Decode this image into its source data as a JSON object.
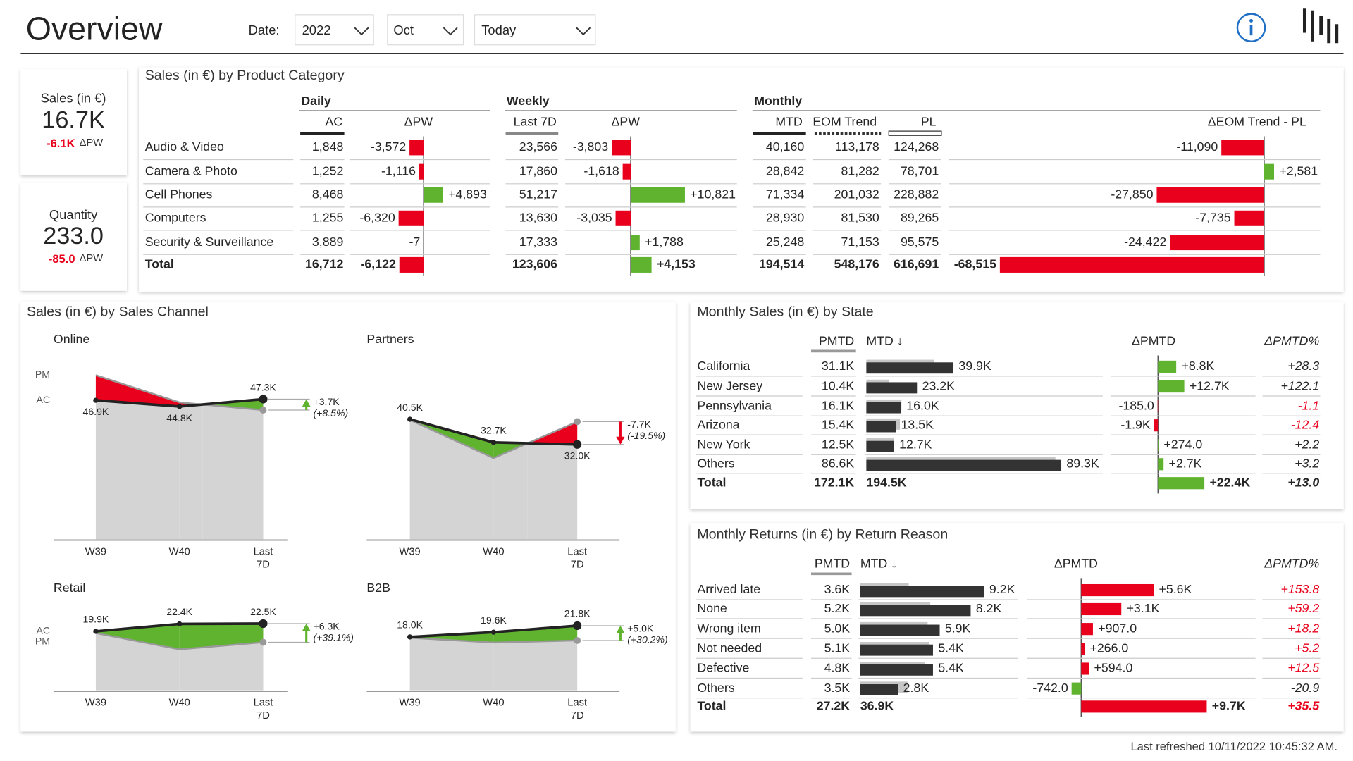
{
  "header": {
    "title": "Overview",
    "date_label": "Date:",
    "filters": [
      "2022",
      "Oct",
      "Today"
    ]
  },
  "palette": {
    "good": "#5fb32e",
    "bad": "#e8001c"
  },
  "kpis": [
    {
      "label": "Sales (in €)",
      "value": "16.7K",
      "delta": "-6.1K",
      "delta_label": "ΔPW"
    },
    {
      "label": "Quantity",
      "value": "233.0",
      "delta": "-85.0",
      "delta_label": "ΔPW"
    }
  ],
  "product_table": {
    "title": "Sales (in €) by Product Category",
    "groups": {
      "daily": "Daily",
      "weekly": "Weekly",
      "monthly": "Monthly"
    },
    "columns": {
      "ac": "AC",
      "ac_dpw": "ΔPW",
      "last7d": "Last 7D",
      "w_dpw": "ΔPW",
      "mtd": "MTD",
      "eom_trend": "EOM Trend",
      "pl": "PL",
      "eom_dpl": "ΔEOM Trend - PL"
    },
    "rows": [
      {
        "name": "Audio & Video",
        "ac": "1,848",
        "ac_dpw": {
          "value": -3572,
          "label": "-3,572"
        },
        "last7d": "23,566",
        "w_dpw": {
          "value": -3803,
          "label": "-3,803"
        },
        "mtd": "40,160",
        "eom_trend": "113,178",
        "pl": "124,268",
        "eom_dpl": {
          "value": -11090,
          "label": "-11,090"
        }
      },
      {
        "name": "Camera & Photo",
        "ac": "1,252",
        "ac_dpw": {
          "value": -1116,
          "label": "-1,116"
        },
        "last7d": "17,860",
        "w_dpw": {
          "value": -1618,
          "label": "-1,618"
        },
        "mtd": "28,842",
        "eom_trend": "81,282",
        "pl": "78,701",
        "eom_dpl": {
          "value": 2581,
          "label": "+2,581"
        }
      },
      {
        "name": "Cell Phones",
        "ac": "8,468",
        "ac_dpw": {
          "value": 4893,
          "label": "+4,893"
        },
        "last7d": "51,217",
        "w_dpw": {
          "value": 10821,
          "label": "+10,821"
        },
        "mtd": "71,334",
        "eom_trend": "201,032",
        "pl": "228,882",
        "eom_dpl": {
          "value": -27850,
          "label": "-27,850"
        }
      },
      {
        "name": "Computers",
        "ac": "1,255",
        "ac_dpw": {
          "value": -6320,
          "label": "-6,320"
        },
        "last7d": "13,630",
        "w_dpw": {
          "value": -3035,
          "label": "-3,035"
        },
        "mtd": "28,930",
        "eom_trend": "81,530",
        "pl": "89,265",
        "eom_dpl": {
          "value": -7735,
          "label": "-7,735"
        }
      },
      {
        "name": "Security & Surveillance",
        "ac": "3,889",
        "ac_dpw": {
          "value": -7,
          "label": "-7"
        },
        "last7d": "17,333",
        "w_dpw": {
          "value": 1788,
          "label": "+1,788"
        },
        "mtd": "25,248",
        "eom_trend": "71,153",
        "pl": "95,575",
        "eom_dpl": {
          "value": -24422,
          "label": "-24,422"
        }
      },
      {
        "name": "Total",
        "ac": "16,712",
        "ac_dpw": {
          "value": -6122,
          "label": "-6,122"
        },
        "last7d": "123,606",
        "w_dpw": {
          "value": 4153,
          "label": "+4,153"
        },
        "mtd": "194,514",
        "eom_trend": "548,176",
        "pl": "616,691",
        "eom_dpl": {
          "value": -68515,
          "label": "-68,515"
        }
      }
    ]
  },
  "sales_channel": {
    "title": "Sales (in €) by Sales Channel",
    "charts": [
      {
        "name": "Online",
        "type": "area",
        "categories": [
          "W39",
          "W40",
          "Last 7D"
        ],
        "ylim": [
          0,
          60
        ],
        "series": [
          {
            "name": "AC",
            "color": "#222222",
            "values": [
              46.9,
              44.8,
              47.3
            ],
            "value_labels": [
              "46.9K",
              "44.8K",
              "47.3K"
            ]
          },
          {
            "name": "PM",
            "color": "#999999",
            "values": [
              55.4,
              46.2,
              43.6
            ]
          }
        ],
        "delta": {
          "value": 3.7,
          "label": "+3.7K"
        },
        "delta_pct": "(+8.5%)"
      },
      {
        "name": "Partners",
        "type": "area",
        "categories": [
          "W39",
          "W40",
          "Last 7D"
        ],
        "ylim": [
          0,
          60
        ],
        "series": [
          {
            "color": "#222222",
            "values": [
              40.5,
              32.7,
              32.0
            ],
            "value_labels": [
              "40.5K",
              "32.7K",
              "32.0K"
            ]
          },
          {
            "color": "#999999",
            "values": [
              40.3,
              27.4,
              39.7
            ]
          }
        ],
        "delta": {
          "value": -7.7,
          "label": "-7.7K"
        },
        "delta_pct": "(-19.5%)"
      },
      {
        "name": "Retail",
        "type": "area",
        "categories": [
          "W39",
          "W40",
          "Last 7D"
        ],
        "ylim": [
          0,
          30
        ],
        "series": [
          {
            "name": "AC",
            "color": "#222222",
            "values": [
              19.9,
              22.4,
              22.5
            ],
            "value_labels": [
              "19.9K",
              "22.4K",
              "22.5K"
            ]
          },
          {
            "name": "PM",
            "color": "#999999",
            "values": [
              19.3,
              13.8,
              16.2
            ]
          }
        ],
        "delta": {
          "value": 6.3,
          "label": "+6.3K"
        },
        "delta_pct": "(+39.1%)"
      },
      {
        "name": "B2B",
        "type": "area",
        "categories": [
          "W39",
          "W40",
          "Last 7D"
        ],
        "ylim": [
          0,
          30
        ],
        "series": [
          {
            "color": "#222222",
            "values": [
              18.0,
              19.6,
              21.8
            ],
            "value_labels": [
              "18.0K",
              "19.6K",
              "21.8K"
            ]
          },
          {
            "color": "#999999",
            "values": [
              17.7,
              16.1,
              16.8
            ]
          }
        ],
        "delta": {
          "value": 5.0,
          "label": "+5.0K"
        },
        "delta_pct": "(+30.2%)"
      }
    ]
  },
  "state_table": {
    "title": "Monthly Sales (in €) by State",
    "increase": "good",
    "columns": {
      "pmtd": "PMTD",
      "mtd": "MTD ↓",
      "delta": "ΔPMTD",
      "pct": "ΔPMTD%"
    },
    "rows": [
      {
        "name": "California",
        "pmtd": {
          "value": 31100,
          "label": "31.1K"
        },
        "mtd": {
          "value": 39900,
          "label": "39.9K"
        },
        "delta": {
          "value": 8800,
          "label": "+8.8K"
        },
        "pct": "+28.3"
      },
      {
        "name": "New Jersey",
        "pmtd": {
          "value": 10400,
          "label": "10.4K"
        },
        "mtd": {
          "value": 23200,
          "label": "23.2K"
        },
        "delta": {
          "value": 12700,
          "label": "+12.7K"
        },
        "pct": "+122.1"
      },
      {
        "name": "Pennsylvania",
        "pmtd": {
          "value": 16100,
          "label": "16.1K"
        },
        "mtd": {
          "value": 16000,
          "label": "16.0K"
        },
        "delta": {
          "value": -185,
          "label": "-185.0"
        },
        "pct": "-1.1"
      },
      {
        "name": "Arizona",
        "pmtd": {
          "value": 15400,
          "label": "15.4K"
        },
        "mtd": {
          "value": 13500,
          "label": "13.5K"
        },
        "delta": {
          "value": -1900,
          "label": "-1.9K"
        },
        "pct": "-12.4"
      },
      {
        "name": "New York",
        "pmtd": {
          "value": 12500,
          "label": "12.5K"
        },
        "mtd": {
          "value": 12700,
          "label": "12.7K"
        },
        "delta": {
          "value": 274,
          "label": "+274.0"
        },
        "pct": "+2.2"
      },
      {
        "name": "Others",
        "pmtd": {
          "value": 86600,
          "label": "86.6K"
        },
        "mtd": {
          "value": 89300,
          "label": "89.3K"
        },
        "delta": {
          "value": 2700,
          "label": "+2.7K"
        },
        "pct": "+3.2"
      },
      {
        "name": "Total",
        "pmtd": "172.1K",
        "mtd": "194.5K",
        "delta": {
          "value": 22400,
          "label": "+22.4K"
        },
        "pct": "+13.0"
      }
    ]
  },
  "returns_table": {
    "title": "Monthly Returns (in €) by Return Reason",
    "increase": "bad",
    "columns": {
      "pmtd": "PMTD",
      "mtd": "MTD ↓",
      "delta": "ΔPMTD",
      "pct": "ΔPMTD%"
    },
    "rows": [
      {
        "name": "Arrived late",
        "pmtd": {
          "value": 3600,
          "label": "3.6K"
        },
        "mtd": {
          "value": 9200,
          "label": "9.2K"
        },
        "delta": {
          "value": 5600,
          "label": "+5.6K"
        },
        "pct": "+153.8"
      },
      {
        "name": "None",
        "pmtd": {
          "value": 5200,
          "label": "5.2K"
        },
        "mtd": {
          "value": 8200,
          "label": "8.2K"
        },
        "delta": {
          "value": 3100,
          "label": "+3.1K"
        },
        "pct": "+59.2"
      },
      {
        "name": "Wrong item",
        "pmtd": {
          "value": 5000,
          "label": "5.0K"
        },
        "mtd": {
          "value": 5900,
          "label": "5.9K"
        },
        "delta": {
          "value": 907,
          "label": "+907.0"
        },
        "pct": "+18.2"
      },
      {
        "name": "Not needed",
        "pmtd": {
          "value": 5100,
          "label": "5.1K"
        },
        "mtd": {
          "value": 5400,
          "label": "5.4K"
        },
        "delta": {
          "value": 266,
          "label": "+266.0"
        },
        "pct": "+5.2"
      },
      {
        "name": "Defective",
        "pmtd": {
          "value": 4800,
          "label": "4.8K"
        },
        "mtd": {
          "value": 5400,
          "label": "5.4K"
        },
        "delta": {
          "value": 594,
          "label": "+594.0"
        },
        "pct": "+12.5"
      },
      {
        "name": "Others",
        "pmtd": {
          "value": 3500,
          "label": "3.5K"
        },
        "mtd": {
          "value": 2800,
          "label": "2.8K"
        },
        "delta": {
          "value": -742,
          "label": "-742.0"
        },
        "pct": "-20.9"
      },
      {
        "name": "Total",
        "pmtd": "27.2K",
        "mtd": "36.9K",
        "delta": {
          "value": 9700,
          "label": "+9.7K"
        },
        "pct": "+35.5"
      }
    ]
  },
  "footer": {
    "text": "Last refreshed 10/11/2022 10:45:32 AM."
  }
}
